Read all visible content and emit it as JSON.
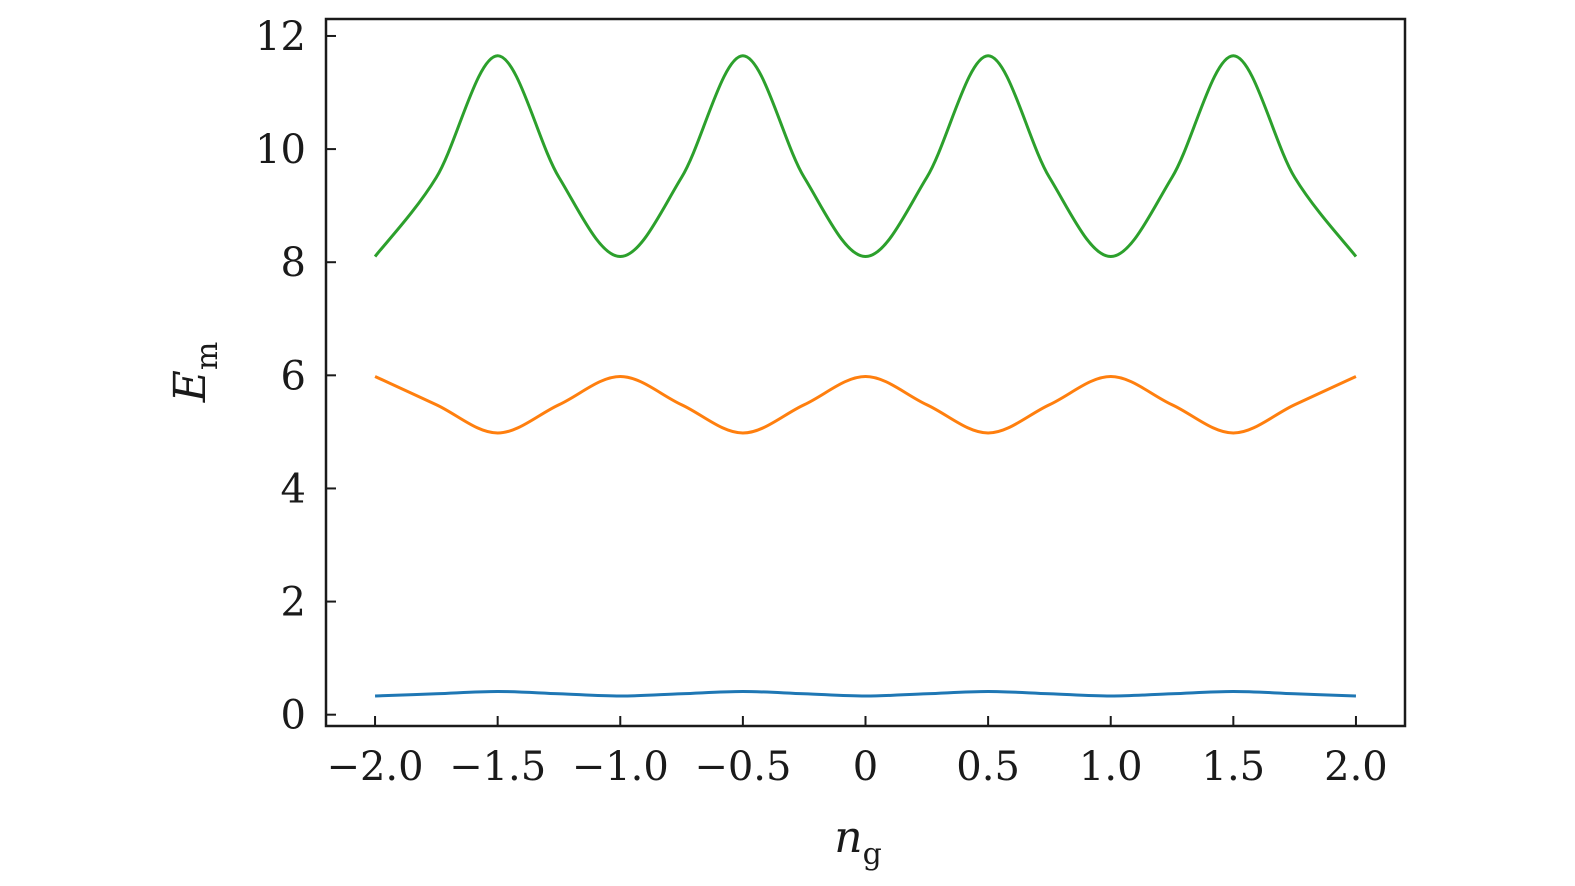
{
  "chart_data": {
    "type": "line",
    "title": "",
    "xlabel": "n",
    "xlabel_sub": "g",
    "ylabel": "E",
    "ylabel_sub": "m",
    "xlim": [
      -2.2,
      2.2
    ],
    "ylim": [
      -0.2,
      12.3
    ],
    "xticks": [
      -2.0,
      -1.5,
      -1.0,
      -0.5,
      0,
      0.5,
      1.0,
      1.5,
      2.0
    ],
    "xtick_labels": [
      "−2.0",
      "−1.5",
      "−1.0",
      "−0.5",
      "0",
      "0.5",
      "1.0",
      "1.5",
      "2.0"
    ],
    "yticks": [
      0,
      2,
      4,
      6,
      8,
      10,
      12
    ],
    "ytick_labels": [
      "0",
      "2",
      "4",
      "6",
      "8",
      "10",
      "12"
    ],
    "grid": false,
    "x": [
      -2.0,
      -1.75,
      -1.5,
      -1.25,
      -1.0,
      -0.75,
      -0.5,
      -0.25,
      0,
      0.25,
      0.5,
      0.75,
      1.0,
      1.25,
      1.5,
      1.75,
      2.0
    ],
    "series": [
      {
        "color": "#1f77b4",
        "values": [
          0.33,
          0.37,
          0.41,
          0.37,
          0.33,
          0.37,
          0.41,
          0.37,
          0.33,
          0.37,
          0.41,
          0.37,
          0.33,
          0.37,
          0.41,
          0.37,
          0.33
        ]
      },
      {
        "color": "#ff7f0e",
        "values": [
          5.98,
          5.48,
          4.98,
          5.48,
          5.98,
          5.48,
          4.98,
          5.48,
          5.98,
          5.48,
          4.98,
          5.48,
          5.98,
          5.48,
          4.98,
          5.48,
          5.98
        ]
      },
      {
        "color": "#2ca02c",
        "values": [
          8.1,
          9.5,
          11.65,
          9.5,
          8.1,
          9.5,
          11.65,
          9.5,
          8.1,
          9.5,
          11.65,
          9.5,
          8.1,
          9.5,
          11.65,
          9.5,
          8.1
        ]
      }
    ]
  }
}
